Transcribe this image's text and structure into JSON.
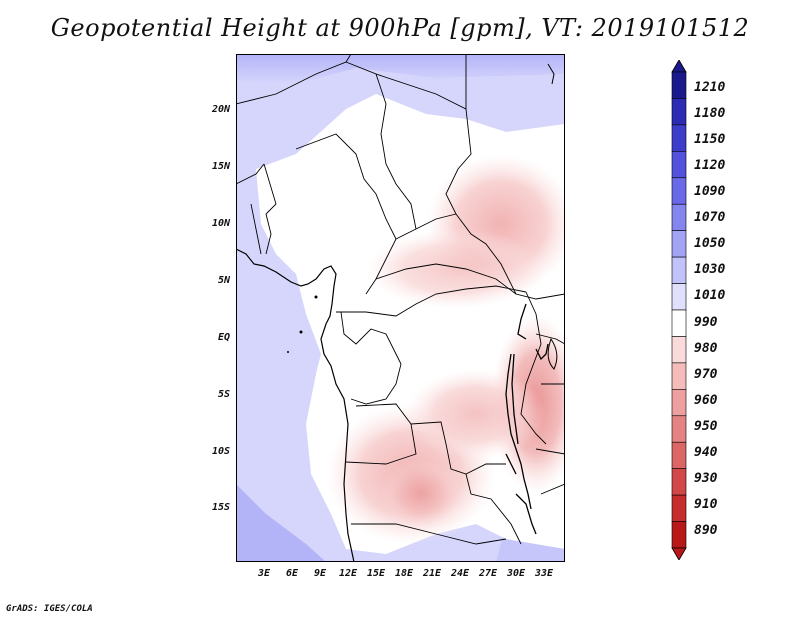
{
  "title": "Geopotential Height at 900hPa [gpm], VT: 2019101512",
  "credit": "GrADS: IGES/COLA",
  "map": {
    "lat_ticks": [
      "20N",
      "15N",
      "10N",
      "5N",
      "EQ",
      "5S",
      "10S",
      "15S"
    ],
    "lon_ticks": [
      "3E",
      "6E",
      "9E",
      "12E",
      "15E",
      "18E",
      "21E",
      "24E",
      "27E",
      "30E",
      "33E"
    ],
    "background_color": "#d6d6fc",
    "land_color": "#ffffff"
  },
  "colorbar": {
    "labels": [
      "1210",
      "1180",
      "1150",
      "1120",
      "1090",
      "1070",
      "1050",
      "1030",
      "1010",
      "990",
      "980",
      "970",
      "960",
      "950",
      "940",
      "930",
      "910",
      "890"
    ],
    "colors": [
      "#1a1a8c",
      "#2b2bb3",
      "#3d3dcc",
      "#5252dd",
      "#6a6ae8",
      "#8585f0",
      "#a3a3f6",
      "#c2c2fa",
      "#e0e0fd",
      "#ffffff",
      "#fadada",
      "#f5bcbc",
      "#eea0a0",
      "#e58383",
      "#dc6565",
      "#d24848",
      "#c62e2e",
      "#b81818"
    ]
  }
}
